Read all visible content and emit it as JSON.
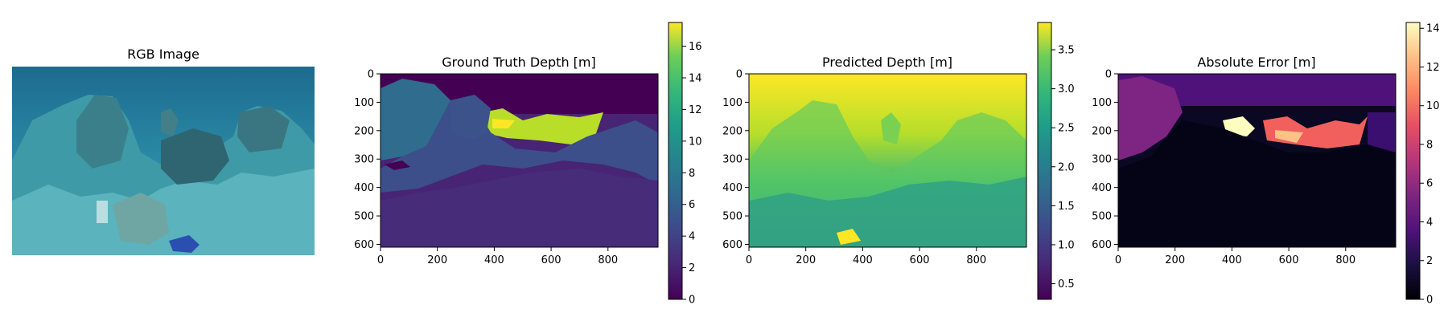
{
  "figure": {
    "panels": [
      {
        "title": "RGB Image"
      },
      {
        "title": "Ground Truth Depth [m]"
      },
      {
        "title": "Predicted Depth [m]"
      },
      {
        "title": "Absolute Error [m]"
      }
    ]
  },
  "chart_data": [
    {
      "type": "heatmap",
      "title": "RGB Image",
      "content": "underwater photo of rocky seabed with blue water; small blue instrument near bottom center",
      "axes": "off",
      "image_size": [
        976,
        610
      ]
    },
    {
      "type": "heatmap",
      "title": "Ground Truth Depth [m]",
      "colormap": "viridis",
      "xlim": [
        0,
        976
      ],
      "ylim": [
        610,
        0
      ],
      "xticks": [
        0,
        200,
        400,
        600,
        800
      ],
      "yticks": [
        0,
        100,
        200,
        300,
        400,
        500,
        600
      ],
      "colorbar": {
        "range": [
          0,
          17.5
        ],
        "ticks": [
          0,
          2,
          4,
          6,
          8,
          10,
          12,
          14,
          16
        ]
      }
    },
    {
      "type": "heatmap",
      "title": "Predicted Depth [m]",
      "colormap": "viridis",
      "xlim": [
        0,
        976
      ],
      "ylim": [
        610,
        0
      ],
      "xticks": [
        0,
        200,
        400,
        600,
        800
      ],
      "yticks": [
        0,
        100,
        200,
        300,
        400,
        500,
        600
      ],
      "colorbar": {
        "range": [
          0.3,
          3.85
        ],
        "ticks": [
          0.5,
          1.0,
          1.5,
          2.0,
          2.5,
          3.0,
          3.5
        ]
      }
    },
    {
      "type": "heatmap",
      "title": "Absolute Error [m]",
      "colormap": "magma",
      "xlim": [
        0,
        976
      ],
      "ylim": [
        610,
        0
      ],
      "xticks": [
        0,
        200,
        400,
        600,
        800
      ],
      "yticks": [
        0,
        100,
        200,
        300,
        400,
        500,
        600
      ],
      "colorbar": {
        "range": [
          0,
          14.3
        ],
        "ticks": [
          0,
          2,
          4,
          6,
          8,
          10,
          12,
          14
        ]
      }
    }
  ]
}
